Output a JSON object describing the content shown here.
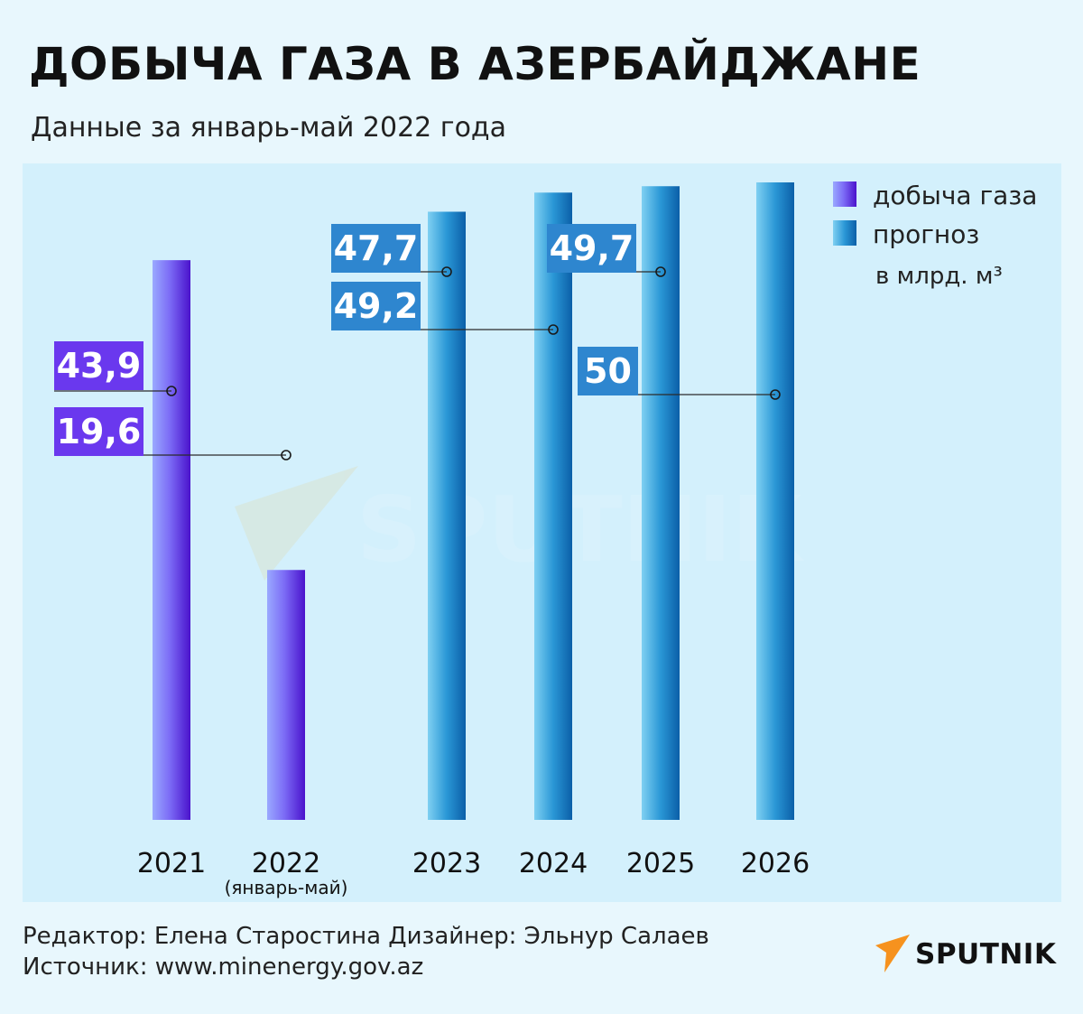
{
  "header": {
    "title": "ДОБЫЧА ГАЗА В АЗЕРБАЙДЖАНЕ",
    "subtitle": "Данные за январь-май 2022 года"
  },
  "colors": {
    "actual": "#6a38ee",
    "forecast": "#1d82c4",
    "label_actual_bg": "#6a38ee",
    "label_forecast_bg": "#2e86cf",
    "panel_bg": "#d3f0fc",
    "page_bg": "#e8f7fd",
    "logo_accent": "#f6921e"
  },
  "chart_data": {
    "type": "bar",
    "categories": [
      "2021",
      "2022",
      "2023",
      "2024",
      "2025",
      "2026"
    ],
    "category_sublabels": [
      "",
      "(январь-май)",
      "",
      "",
      "",
      ""
    ],
    "values": [
      43.9,
      19.6,
      47.7,
      49.2,
      49.7,
      50
    ],
    "value_labels": [
      "43,9",
      "19,6",
      "47,7",
      "49,2",
      "49,7",
      "50"
    ],
    "bar_kind": [
      "actual",
      "actual",
      "forecast",
      "forecast",
      "forecast",
      "forecast"
    ],
    "series": [
      {
        "name": "добыча газа",
        "kind": "actual"
      },
      {
        "name": "прогноз",
        "kind": "forecast"
      }
    ],
    "unit": "в млрд. м³",
    "ylim": [
      0,
      50
    ],
    "legend_position": "top-right",
    "grid": false
  },
  "watermark": "SPUTNIK",
  "footer": {
    "credits": "Редактор: Елена Старостина  Дизайнер: Эльнур Салаев",
    "source": "Источник: www.minenergy.gov.az"
  },
  "logo": {
    "text": "SPUTNIK",
    "icon": "sputnik-arrow-icon"
  }
}
